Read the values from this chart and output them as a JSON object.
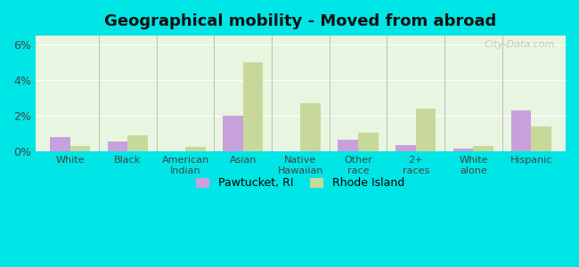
{
  "title": "Geographical mobility - Moved from abroad",
  "categories": [
    "White",
    "Black",
    "American\nIndian",
    "Asian",
    "Native\nHawaiian",
    "Other\nrace",
    "2+\nraces",
    "White\nalone",
    "Hispanic"
  ],
  "pawtucket_values": [
    0.8,
    0.55,
    0.0,
    2.0,
    0.0,
    0.65,
    0.35,
    0.15,
    2.3
  ],
  "rhode_island_values": [
    0.3,
    0.9,
    0.25,
    5.0,
    2.7,
    1.05,
    2.4,
    0.3,
    1.4
  ],
  "pawtucket_color": "#c9a0dc",
  "rhode_island_color": "#c8d89a",
  "background_color": "#e8f5e0",
  "outer_background": "#00e5e5",
  "ylim": [
    0,
    6.5
  ],
  "yticks": [
    0,
    2,
    4,
    6
  ],
  "ytick_labels": [
    "0%",
    "2%",
    "4%",
    "6%"
  ],
  "legend_pawtucket": "Pawtucket, RI",
  "legend_rhode_island": "Rhode Island",
  "watermark": "City-Data.com",
  "bar_width": 0.35
}
